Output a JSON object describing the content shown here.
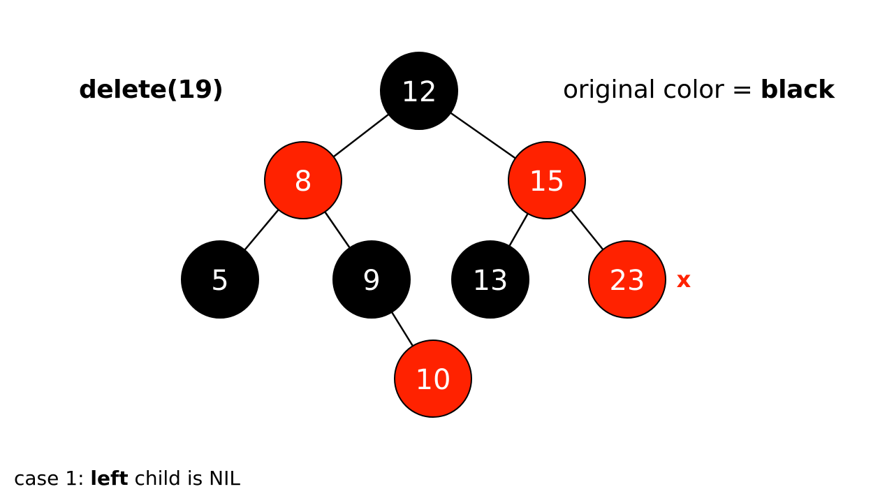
{
  "operation": "delete(19)",
  "original_color": {
    "prefix": "original color = ",
    "value": "black"
  },
  "case_text": {
    "prefix": "case 1: ",
    "bold": "left",
    "suffix": " child is NIL"
  },
  "colors": {
    "red": "#ff2200",
    "black": "#000000",
    "edge": "#000000",
    "marker": "#ff2200"
  },
  "tree": {
    "nodes": [
      {
        "key": "12",
        "color": "black"
      },
      {
        "key": "8",
        "color": "red"
      },
      {
        "key": "15",
        "color": "red"
      },
      {
        "key": "5",
        "color": "black"
      },
      {
        "key": "9",
        "color": "black"
      },
      {
        "key": "13",
        "color": "black"
      },
      {
        "key": "23",
        "color": "red"
      },
      {
        "key": "10",
        "color": "red"
      }
    ],
    "edges": [
      [
        "12",
        "8"
      ],
      [
        "12",
        "15"
      ],
      [
        "8",
        "5"
      ],
      [
        "8",
        "9"
      ],
      [
        "15",
        "13"
      ],
      [
        "15",
        "23"
      ],
      [
        "9",
        "10"
      ]
    ],
    "marker": {
      "text": "x",
      "node": "23"
    }
  }
}
